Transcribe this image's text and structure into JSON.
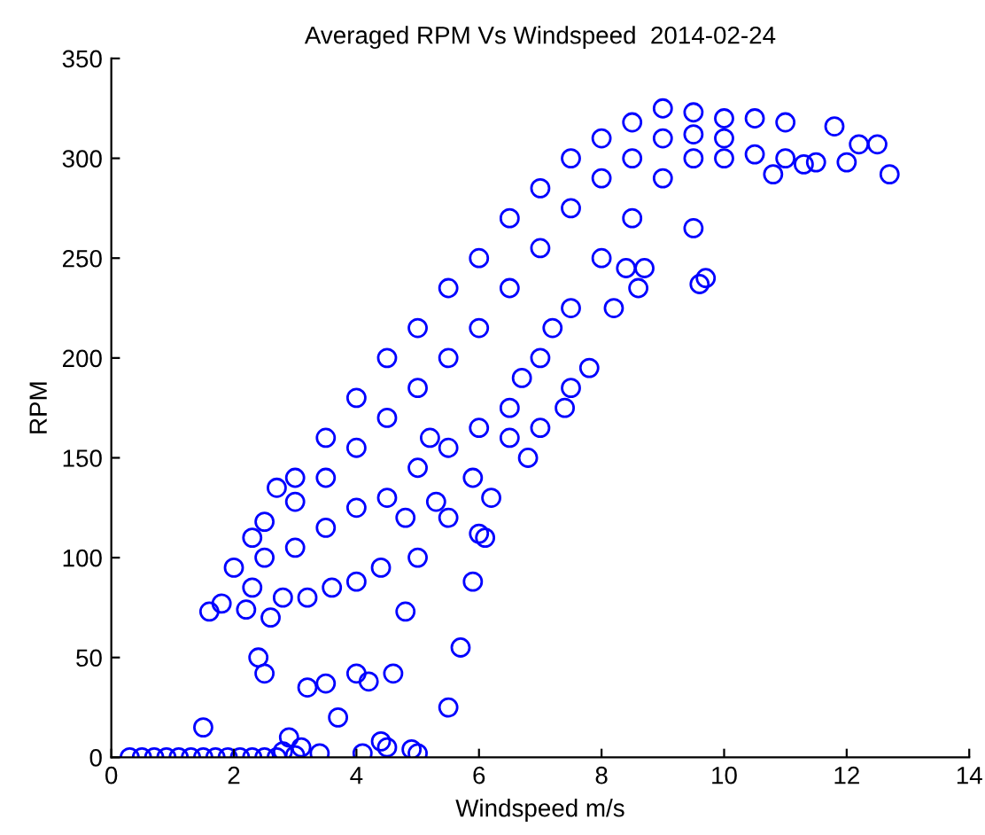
{
  "chart_data": {
    "type": "scatter",
    "title": "Averaged RPM Vs Windspeed  2014-02-24",
    "xlabel": "Windspeed m/s",
    "ylabel": "RPM",
    "marker": "circle",
    "grid": false,
    "legend": false,
    "xlim": [
      0,
      14
    ],
    "xticks": [
      0,
      2,
      4,
      6,
      8,
      10,
      12,
      14
    ],
    "ylim": [
      0,
      350
    ],
    "yticks": [
      0,
      50,
      100,
      150,
      200,
      250,
      300,
      350
    ],
    "series": [
      {
        "color": "#0000ff",
        "x": [
          0.3,
          0.5,
          0.7,
          0.9,
          1.1,
          1.3,
          1.5,
          1.7,
          1.9,
          2.1,
          2.3,
          2.5,
          2.7,
          2.8,
          3.1,
          3.4,
          4.1,
          4.5,
          5.0,
          1.5,
          1.6,
          1.8,
          2.2,
          2.4,
          2.6,
          2.9,
          3.0,
          3.2,
          3.5,
          3.7,
          4.0,
          4.2,
          4.4,
          4.6,
          4.8,
          4.9,
          5.0,
          5.5,
          5.7,
          5.9,
          6.0,
          6.1,
          2.5,
          2.0,
          2.5,
          3.0,
          3.5,
          4.0,
          4.5,
          5.0,
          5.5,
          6.0,
          6.5,
          7.0,
          7.5,
          8.0,
          8.5,
          9.0,
          9.5,
          10.0,
          11.0,
          11.5,
          12.0,
          12.5,
          12.7,
          12.2,
          11.8,
          11.3,
          10.5,
          10.8,
          2.3,
          2.7,
          3.0,
          3.5,
          4.0,
          4.5,
          5.0,
          5.5,
          6.0,
          6.5,
          7.0,
          7.5,
          8.0,
          8.5,
          9.0,
          9.5,
          10.0,
          10.5,
          11.0,
          2.5,
          3.0,
          3.5,
          4.0,
          4.5,
          5.0,
          5.5,
          6.0,
          6.5,
          7.0,
          7.5,
          8.0,
          8.5,
          9.0,
          9.5,
          10.0,
          7.5,
          7.2,
          7.8,
          8.2,
          8.4,
          8.6,
          9.5,
          9.7,
          9.6,
          8.7,
          7.4,
          7.0,
          6.5,
          6.8,
          5.9,
          6.2,
          5.5,
          5.3,
          4.8,
          4.4,
          4.0,
          3.6,
          3.2,
          2.8,
          2.3,
          5.2,
          6.7
        ],
        "values": [
          0,
          0,
          0,
          0,
          0,
          0,
          0,
          0,
          0,
          0,
          0,
          0,
          0,
          3,
          5,
          2,
          2,
          5,
          2,
          15,
          73,
          77,
          74,
          50,
          70,
          10,
          1,
          35,
          37,
          20,
          42,
          38,
          8,
          42,
          73,
          4,
          100,
          25,
          55,
          88,
          112,
          110,
          42,
          95,
          100,
          105,
          115,
          125,
          130,
          145,
          155,
          165,
          175,
          200,
          225,
          250,
          270,
          290,
          300,
          300,
          300,
          298,
          298,
          307,
          292,
          307,
          316,
          297,
          302,
          292,
          110,
          135,
          140,
          160,
          180,
          200,
          215,
          235,
          250,
          270,
          285,
          300,
          310,
          318,
          325,
          323,
          320,
          320,
          318,
          118,
          128,
          140,
          155,
          170,
          185,
          200,
          215,
          235,
          255,
          275,
          290,
          300,
          310,
          312,
          310,
          185,
          215,
          195,
          225,
          245,
          235,
          265,
          240,
          237,
          245,
          175,
          165,
          160,
          150,
          140,
          130,
          120,
          128,
          120,
          95,
          88,
          85,
          80,
          80,
          85,
          160,
          190
        ]
      }
    ]
  }
}
